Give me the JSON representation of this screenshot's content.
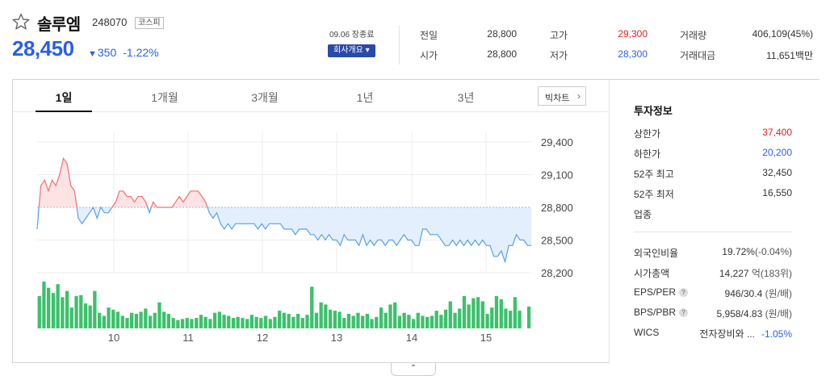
{
  "stock": {
    "name": "솔루엠",
    "code": "248070",
    "market": "코스피",
    "price": "28,450",
    "change_arrow": "▼",
    "change": "350",
    "change_pct": "-1.22%",
    "date_status": "09.06 장종료",
    "company_info_label": "회사개요 ▾"
  },
  "quote": {
    "prev_label": "전일",
    "prev": "28,800",
    "open_label": "시가",
    "open": "28,800",
    "high_label": "고가",
    "high": "29,300",
    "low_label": "저가",
    "low": "28,300",
    "volume_label": "거래량",
    "volume": "406,109(45%)",
    "amount_label": "거래대금",
    "amount": "11,651백만"
  },
  "tabs": [
    "1일",
    "1개월",
    "3개월",
    "1년",
    "3년"
  ],
  "active_tab": "1일",
  "big_chart_label": "빅차트",
  "colors": {
    "up": "#e02020",
    "down": "#2a5ee8",
    "volume": "#3cc16b",
    "line_up": "#f07070",
    "line_down": "#5aa0e8"
  },
  "chart_data": {
    "type": "area",
    "title": "",
    "xlabel": "",
    "ylabel": "",
    "y_ticks": [
      "29,400",
      "29,100",
      "28,800",
      "28,500",
      "28,200"
    ],
    "ylim": [
      28100,
      29500
    ],
    "x_ticks": [
      "10",
      "11",
      "12",
      "13",
      "14",
      "15"
    ],
    "reference_price": 28800,
    "price_series": [
      28600,
      29000,
      29050,
      28950,
      29050,
      29000,
      29100,
      29250,
      29200,
      29000,
      28950,
      28700,
      28650,
      28700,
      28750,
      28800,
      28700,
      28800,
      28750,
      28750,
      28800,
      28850,
      28950,
      28950,
      28900,
      28900,
      28850,
      28900,
      28900,
      28850,
      28750,
      28850,
      28800,
      28800,
      28800,
      28800,
      28800,
      28850,
      28900,
      28850,
      28900,
      28950,
      28950,
      28950,
      28900,
      28850,
      28750,
      28700,
      28750,
      28650,
      28600,
      28650,
      28600,
      28650,
      28650,
      28650,
      28650,
      28650,
      28650,
      28600,
      28650,
      28600,
      28650,
      28650,
      28650,
      28650,
      28600,
      28600,
      28600,
      28550,
      28600,
      28600,
      28600,
      28550,
      28550,
      28500,
      28550,
      28500,
      28550,
      28500,
      28500,
      28450,
      28550,
      28500,
      28500,
      28500,
      28450,
      28550,
      28450,
      28500,
      28450,
      28500,
      28500,
      28450,
      28500,
      28500,
      28450,
      28500,
      28550,
      28500,
      28500,
      28450,
      28450,
      28600,
      28600,
      28550,
      28550,
      28550,
      28500,
      28450,
      28450,
      28500,
      28450,
      28500,
      28450,
      28500,
      28450,
      28500,
      28450,
      28500,
      28450,
      28450,
      28350,
      28350,
      28400,
      28300,
      28450,
      28450,
      28550,
      28500,
      28500,
      28450,
      28450
    ],
    "volumes": [
      62,
      90,
      78,
      68,
      85,
      60,
      72,
      40,
      62,
      64,
      48,
      44,
      72,
      30,
      24,
      40,
      36,
      32,
      24,
      20,
      30,
      28,
      32,
      38,
      24,
      30,
      50,
      32,
      28,
      20,
      16,
      18,
      20,
      18,
      20,
      26,
      22,
      18,
      30,
      32,
      26,
      24,
      20,
      22,
      20,
      18,
      26,
      22,
      20,
      24,
      18,
      22,
      34,
      30,
      28,
      22,
      28,
      20,
      26,
      80,
      30,
      50,
      46,
      36,
      34,
      32,
      20,
      28,
      24,
      30,
      24,
      28,
      18,
      22,
      40,
      30,
      46,
      50,
      24,
      30,
      26,
      18,
      30,
      24,
      22,
      24,
      34,
      26,
      36,
      52,
      30,
      38,
      62,
      46,
      58,
      60,
      52,
      28,
      40,
      62,
      56,
      38,
      34,
      60,
      34,
      0,
      42
    ]
  },
  "info": {
    "title": "투자정보",
    "upper_limit_label": "상한가",
    "upper_limit": "37,400",
    "lower_limit_label": "하한가",
    "lower_limit": "20,200",
    "high52_label": "52주 최고",
    "high52": "32,450",
    "low52_label": "52주 최저",
    "low52": "16,550",
    "sector_label": "업종",
    "foreign_label": "외국인비율",
    "foreign": "19.72%",
    "foreign_sub": "(-0.04%)",
    "mcap_label": "시가총액",
    "mcap": "14,227",
    "mcap_sub": " 억(183위)",
    "eps_label": "EPS/PER",
    "eps": "946/30.4",
    "eps_sub": " (원/배)",
    "bps_label": "BPS/PBR",
    "bps": "5,958/4.83",
    "bps_sub": " (원/배)",
    "wics_label": "WICS",
    "wics": "전자장비와 ...",
    "wics_chg": "-1.05%"
  },
  "collapse_icon": "chevron-up-icon"
}
